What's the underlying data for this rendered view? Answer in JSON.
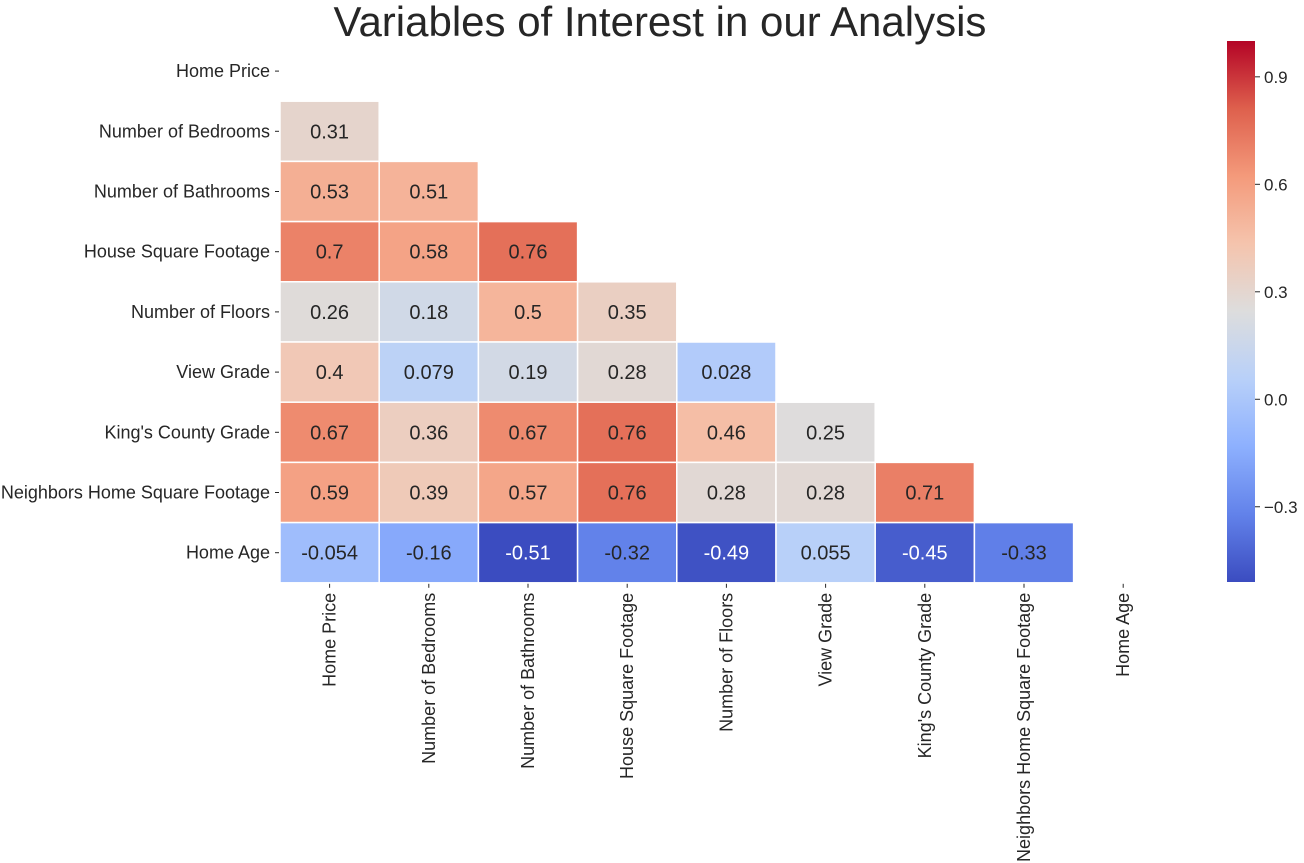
{
  "chart_data": {
    "type": "heatmap",
    "title": "Variables of Interest in our Analysis",
    "row_labels": [
      "Home Price",
      "Number of Bedrooms",
      "Number of Bathrooms",
      "House Square Footage",
      "Number of Floors",
      "View Grade",
      "King's County Grade",
      "Neighbors Home Square Footage",
      "Home Age"
    ],
    "col_labels": [
      "Home Price",
      "Number of Bedrooms",
      "Number of Bathrooms",
      "House Square Footage",
      "Number of Floors",
      "View Grade",
      "King's County Grade",
      "Neighbors Home Square Footage",
      "Home Age"
    ],
    "mask": "upper-triangle-including-diagonal",
    "values": [
      [
        null,
        null,
        null,
        null,
        null,
        null,
        null,
        null,
        null
      ],
      [
        0.31,
        null,
        null,
        null,
        null,
        null,
        null,
        null,
        null
      ],
      [
        0.53,
        0.51,
        null,
        null,
        null,
        null,
        null,
        null,
        null
      ],
      [
        0.7,
        0.58,
        0.76,
        null,
        null,
        null,
        null,
        null,
        null
      ],
      [
        0.26,
        0.18,
        0.5,
        0.35,
        null,
        null,
        null,
        null,
        null
      ],
      [
        0.4,
        0.079,
        0.19,
        0.28,
        0.028,
        null,
        null,
        null,
        null
      ],
      [
        0.67,
        0.36,
        0.67,
        0.76,
        0.46,
        0.25,
        null,
        null,
        null
      ],
      [
        0.59,
        0.39,
        0.57,
        0.76,
        0.28,
        0.28,
        0.71,
        null,
        null
      ],
      [
        -0.054,
        -0.16,
        -0.51,
        -0.32,
        -0.49,
        0.055,
        -0.45,
        -0.33,
        null
      ]
    ],
    "cell_text": [
      [
        null,
        null,
        null,
        null,
        null,
        null,
        null,
        null,
        null
      ],
      [
        "0.31",
        null,
        null,
        null,
        null,
        null,
        null,
        null,
        null
      ],
      [
        "0.53",
        "0.51",
        null,
        null,
        null,
        null,
        null,
        null,
        null
      ],
      [
        "0.7",
        "0.58",
        "0.76",
        null,
        null,
        null,
        null,
        null,
        null
      ],
      [
        "0.26",
        "0.18",
        "0.5",
        "0.35",
        null,
        null,
        null,
        null,
        null
      ],
      [
        "0.4",
        "0.079",
        "0.19",
        "0.28",
        "0.028",
        null,
        null,
        null,
        null
      ],
      [
        "0.67",
        "0.36",
        "0.67",
        "0.76",
        "0.46",
        "0.25",
        null,
        null,
        null
      ],
      [
        "0.59",
        "0.39",
        "0.57",
        "0.76",
        "0.28",
        "0.28",
        "0.71",
        null,
        null
      ],
      [
        "-0.054",
        "-0.16",
        "-0.51",
        "-0.32",
        "-0.49",
        "0.055",
        "-0.45",
        "-0.33",
        null
      ]
    ],
    "colormap": "coolwarm",
    "vmin": -0.51,
    "vmax": 1.0,
    "colorbar": {
      "ticks": [
        0.9,
        0.6,
        0.3,
        0.0,
        -0.3
      ],
      "tick_labels": [
        "0.9",
        "0.6",
        "0.3",
        "0.0",
        "−0.3"
      ],
      "position": "right"
    },
    "grid_line_color": "#ffffff"
  }
}
